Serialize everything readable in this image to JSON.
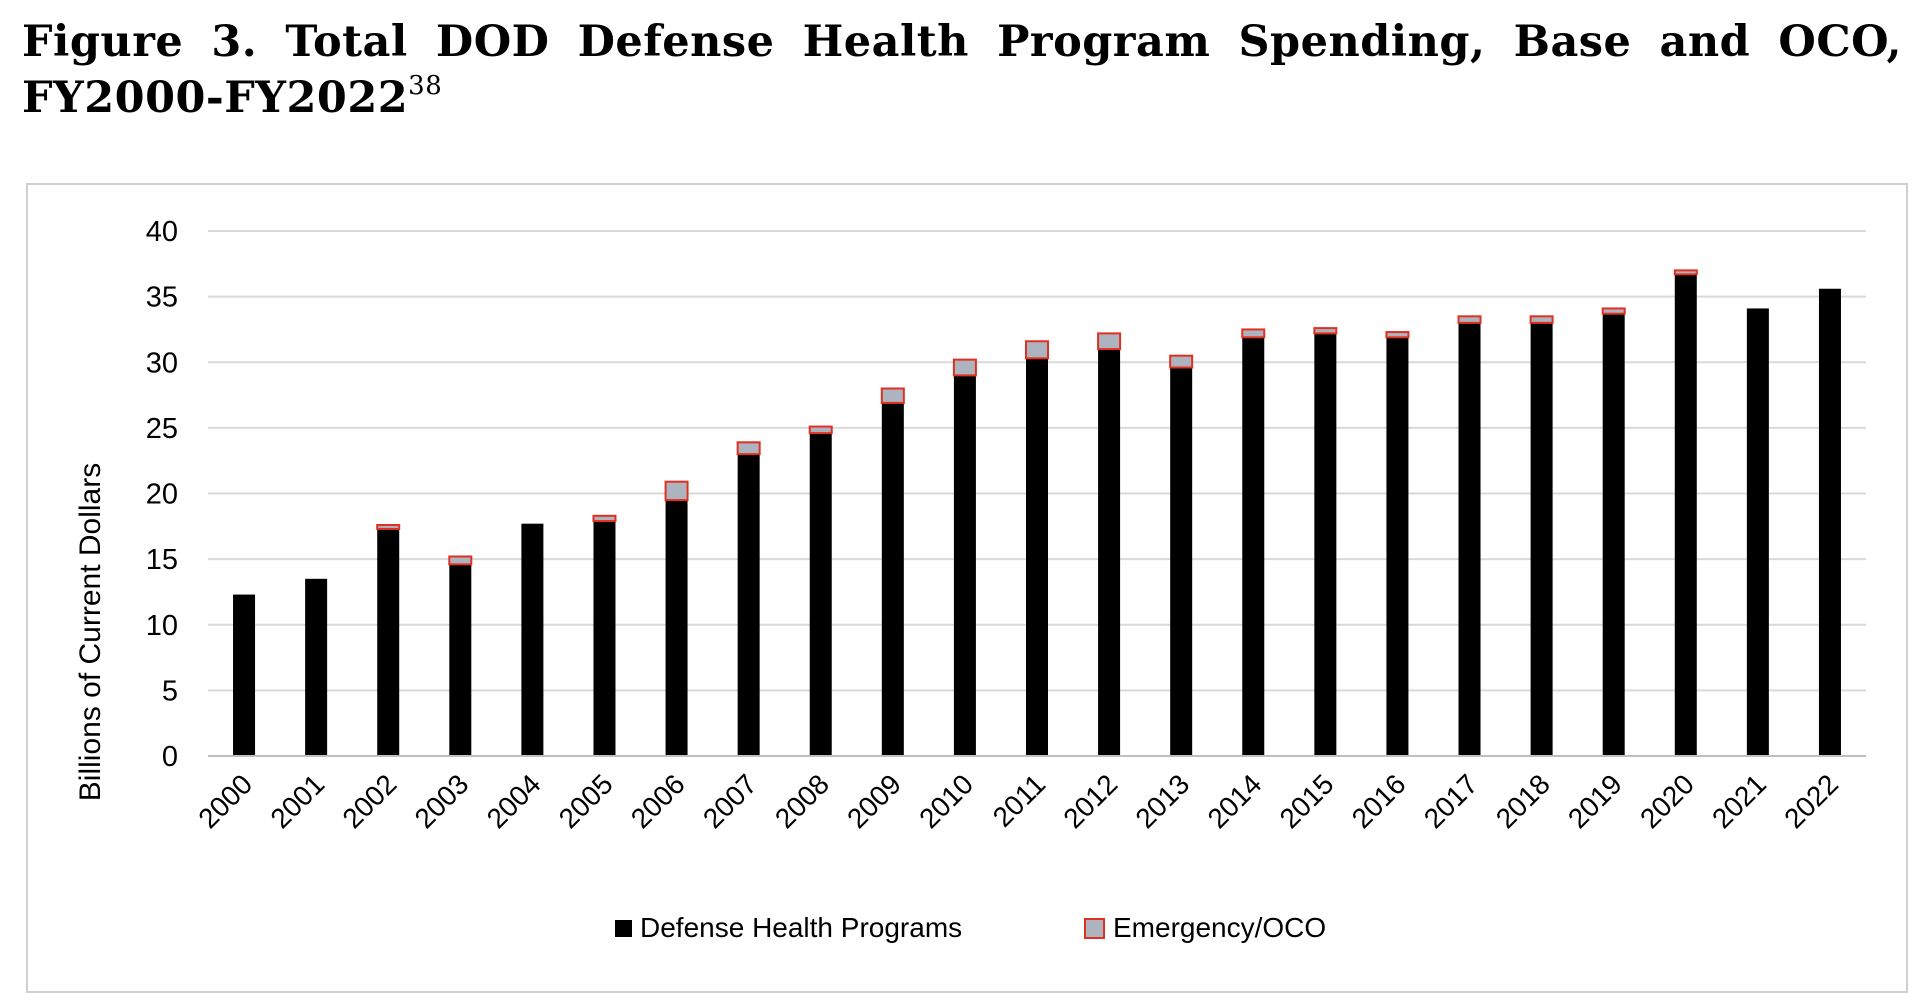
{
  "figure": {
    "title": "Figure 3. Total DOD Defense Health Program Spending, Base and OCO, FY2000-FY2022",
    "footnote": "38"
  },
  "chart_data": {
    "type": "bar",
    "stacked": true,
    "categories": [
      "2000",
      "2001",
      "2002",
      "2003",
      "2004",
      "2005",
      "2006",
      "2007",
      "2008",
      "2009",
      "2010",
      "2011",
      "2012",
      "2013",
      "2014",
      "2015",
      "2016",
      "2017",
      "2018",
      "2019",
      "2020",
      "2021",
      "2022"
    ],
    "series": [
      {
        "name": "Defense Health Programs",
        "color": "#000000",
        "values": [
          12.3,
          13.5,
          17.3,
          14.6,
          17.7,
          17.9,
          19.5,
          23.0,
          24.6,
          26.9,
          29.0,
          30.3,
          31.0,
          29.6,
          31.9,
          32.2,
          31.9,
          33.0,
          33.0,
          33.7,
          36.7,
          34.1,
          35.6
        ]
      },
      {
        "name": "Emergency/OCO",
        "color": "#adb3bf",
        "edge": "#e03020",
        "values": [
          0,
          0,
          0.3,
          0.6,
          0,
          0.4,
          1.4,
          0.9,
          0.5,
          1.1,
          1.2,
          1.3,
          1.2,
          0.9,
          0.6,
          0.4,
          0.4,
          0.5,
          0.5,
          0.4,
          0.3,
          0,
          0
        ]
      }
    ],
    "xlabel": "",
    "ylabel": "Billions of Current Dollars",
    "ylim": [
      0,
      40
    ],
    "yticks": [
      0,
      5,
      10,
      15,
      20,
      25,
      30,
      35,
      40
    ],
    "grid": true,
    "legend": "bottom-center"
  }
}
